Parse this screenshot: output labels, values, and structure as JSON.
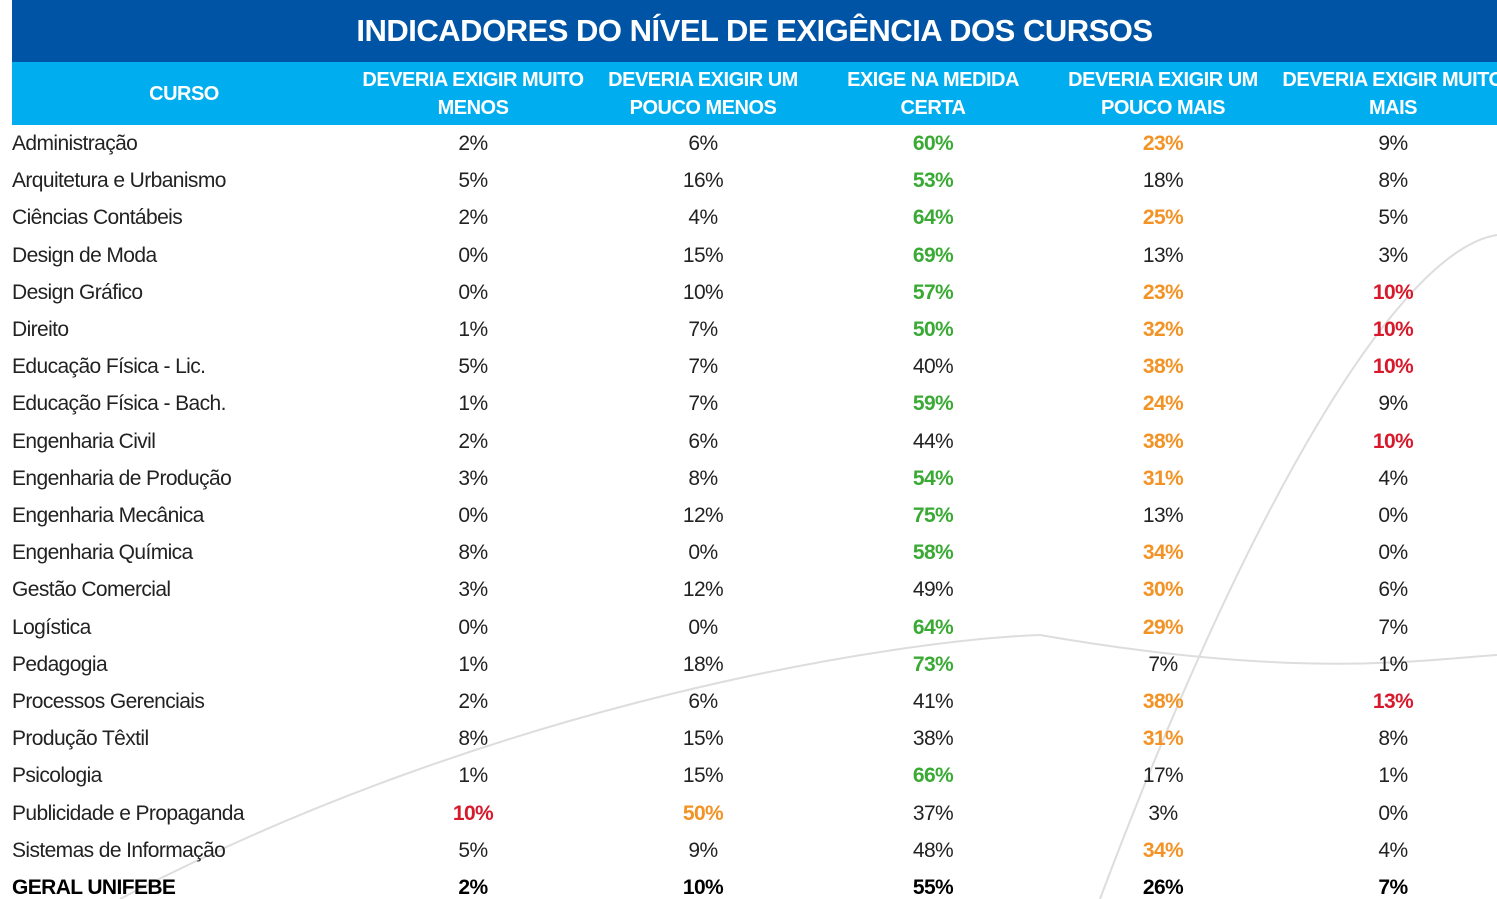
{
  "title": "INDICADORES DO NÍVEL DE EXIGÊNCIA DOS CURSOS",
  "table": {
    "headers": [
      "CURSO",
      "DEVERIA EXIGIR MUITO MENOS",
      "DEVERIA EXIGIR UM POUCO MENOS",
      "EXIGE NA MEDIDA CERTA",
      "DEVERIA EXIGIR UM POUCO MAIS",
      "DEVERIA EXIGIR MUITO MAIS"
    ],
    "palette": {
      "g": "#3aaa35",
      "o": "#f39325",
      "r": "#d7192b"
    },
    "rows": [
      [
        "Administração",
        "2%",
        "6%",
        "60%",
        "23%",
        "9%"
      ],
      [
        "Arquitetura e Urbanismo",
        "5%",
        "16%",
        "53%",
        "18%",
        "8%"
      ],
      [
        "Ciências Contábeis",
        "2%",
        "4%",
        "64%",
        "25%",
        "5%"
      ],
      [
        "Design de Moda",
        "0%",
        "15%",
        "69%",
        "13%",
        "3%"
      ],
      [
        "Design Gráfico",
        "0%",
        "10%",
        "57%",
        "23%",
        "10%"
      ],
      [
        "Direito",
        "1%",
        "7%",
        "50%",
        "32%",
        "10%"
      ],
      [
        "Educação Física - Lic.",
        "5%",
        "7%",
        "40%",
        "38%",
        "10%"
      ],
      [
        "Educação Física - Bach.",
        "1%",
        "7%",
        "59%",
        "24%",
        "9%"
      ],
      [
        "Engenharia Civil",
        "2%",
        "6%",
        "44%",
        "38%",
        "10%"
      ],
      [
        "Engenharia de Produção",
        "3%",
        "8%",
        "54%",
        "31%",
        "4%"
      ],
      [
        "Engenharia Mecânica",
        "0%",
        "12%",
        "75%",
        "13%",
        "0%"
      ],
      [
        "Engenharia Química",
        "8%",
        "0%",
        "58%",
        "34%",
        "0%"
      ],
      [
        "Gestão Comercial",
        "3%",
        "12%",
        "49%",
        "30%",
        "6%"
      ],
      [
        "Logística",
        "0%",
        "0%",
        "64%",
        "29%",
        "7%"
      ],
      [
        "Pedagogia",
        "1%",
        "18%",
        "73%",
        "7%",
        "1%"
      ],
      [
        "Processos Gerenciais",
        "2%",
        "6%",
        "41%",
        "38%",
        "13%"
      ],
      [
        "Produção Têxtil",
        "8%",
        "15%",
        "38%",
        "31%",
        "8%"
      ],
      [
        "Psicologia",
        "1%",
        "15%",
        "66%",
        "17%",
        "1%"
      ],
      [
        "Publicidade e Propaganda",
        "10%",
        "50%",
        "37%",
        "3%",
        "0%"
      ],
      [
        "Sistemas de Informação",
        "5%",
        "9%",
        "48%",
        "34%",
        "4%"
      ]
    ],
    "cell_colors": [
      [
        null,
        null,
        null,
        "g",
        "o",
        null
      ],
      [
        null,
        null,
        null,
        "g",
        null,
        null
      ],
      [
        null,
        null,
        null,
        "g",
        "o",
        null
      ],
      [
        null,
        null,
        null,
        "g",
        null,
        null
      ],
      [
        null,
        null,
        null,
        "g",
        "o",
        "r"
      ],
      [
        null,
        null,
        null,
        "g",
        "o",
        "r"
      ],
      [
        null,
        null,
        null,
        null,
        "o",
        "r"
      ],
      [
        null,
        null,
        null,
        "g",
        "o",
        null
      ],
      [
        null,
        null,
        null,
        null,
        "o",
        "r"
      ],
      [
        null,
        null,
        null,
        "g",
        "o",
        null
      ],
      [
        null,
        null,
        null,
        "g",
        null,
        null
      ],
      [
        null,
        null,
        null,
        "g",
        "o",
        null
      ],
      [
        null,
        null,
        null,
        null,
        "o",
        null
      ],
      [
        null,
        null,
        null,
        "g",
        "o",
        null
      ],
      [
        null,
        null,
        null,
        "g",
        null,
        null
      ],
      [
        null,
        null,
        null,
        null,
        "o",
        "r"
      ],
      [
        null,
        null,
        null,
        null,
        "o",
        null
      ],
      [
        null,
        null,
        null,
        "g",
        null,
        null
      ],
      [
        null,
        "r",
        "o",
        null,
        null,
        null
      ],
      [
        null,
        null,
        null,
        null,
        "o",
        null
      ]
    ],
    "footer": [
      "GERAL UNIFEBE",
      "2%",
      "10%",
      "55%",
      "26%",
      "7%"
    ]
  }
}
